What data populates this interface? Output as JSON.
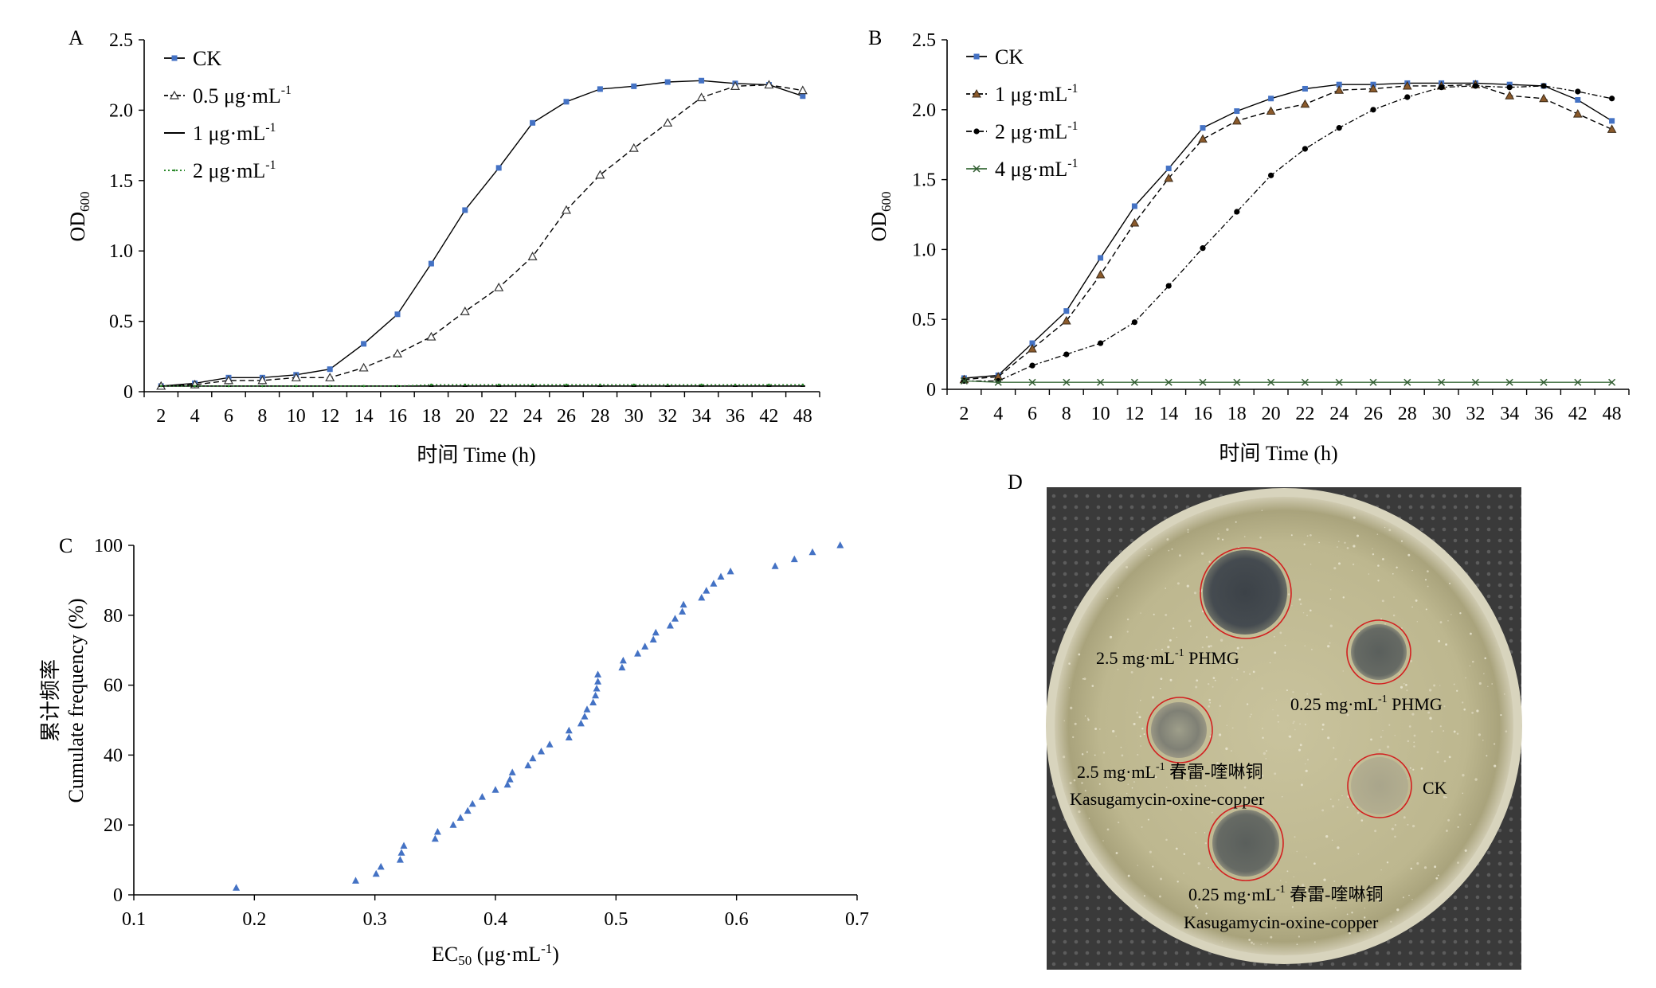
{
  "panel_letters": {
    "a": "A",
    "b": "B",
    "c": "C",
    "d": "D"
  },
  "colors": {
    "ck": "#4472C4",
    "marker_c": "#4472C4",
    "green": "#2E8B2E",
    "axis": "#000000",
    "circle": "#D22020"
  },
  "chart_data": [
    {
      "panel": "A",
      "type": "line",
      "categories": [
        "2",
        "4",
        "6",
        "8",
        "10",
        "12",
        "14",
        "16",
        "18",
        "20",
        "22",
        "24",
        "26",
        "28",
        "30",
        "32",
        "34",
        "36",
        "42",
        "48"
      ],
      "xlabel": "时间 Time (h)",
      "ylabel": "OD",
      "ylabel_sub": "600",
      "ylim": [
        0,
        2.5
      ],
      "yticks": [
        "0",
        "0.5",
        "1.0",
        "1.5",
        "2.0",
        "2.5"
      ],
      "legend_position": "top-left",
      "series": [
        {
          "name": "CK",
          "unit_sup": "",
          "style": "ck",
          "values": [
            0.04,
            0.06,
            0.1,
            0.1,
            0.12,
            0.16,
            0.34,
            0.55,
            0.91,
            1.29,
            1.59,
            1.91,
            2.06,
            2.15,
            2.17,
            2.2,
            2.21,
            2.19,
            2.18,
            2.1
          ]
        },
        {
          "name": "0.5 μg·mL",
          "unit_sup": "-1",
          "style": "dash-tri",
          "values": [
            0.04,
            0.05,
            0.08,
            0.08,
            0.1,
            0.1,
            0.17,
            0.27,
            0.39,
            0.57,
            0.74,
            0.96,
            1.29,
            1.54,
            1.73,
            1.91,
            2.09,
            2.17,
            2.18,
            2.14
          ]
        },
        {
          "name": "1 μg·mL",
          "unit_sup": "-1",
          "style": "solid-black",
          "values": [
            0.04,
            0.04,
            0.04,
            0.04,
            0.04,
            0.04,
            0.04,
            0.04,
            0.04,
            0.04,
            0.04,
            0.04,
            0.04,
            0.04,
            0.04,
            0.04,
            0.04,
            0.04,
            0.04,
            0.04
          ]
        },
        {
          "name": "2 μg·mL",
          "unit_sup": "-1",
          "style": "dot-green",
          "values": [
            0.04,
            0.04,
            0.04,
            0.04,
            0.04,
            0.04,
            0.04,
            0.04,
            0.05,
            0.05,
            0.05,
            0.05,
            0.05,
            0.05,
            0.05,
            0.05,
            0.05,
            0.05,
            0.05,
            0.05
          ]
        }
      ]
    },
    {
      "panel": "B",
      "type": "line",
      "categories": [
        "2",
        "4",
        "6",
        "8",
        "10",
        "12",
        "14",
        "16",
        "18",
        "20",
        "22",
        "24",
        "26",
        "28",
        "30",
        "32",
        "34",
        "36",
        "42",
        "48"
      ],
      "xlabel": "时间 Time (h)",
      "ylabel": "OD",
      "ylabel_sub": "600",
      "ylim": [
        0,
        2.5
      ],
      "yticks": [
        "0",
        "0.5",
        "1.0",
        "1.5",
        "2.0",
        "2.5"
      ],
      "legend_position": "top-left",
      "series": [
        {
          "name": "CK",
          "unit_sup": "",
          "style": "ck",
          "values": [
            0.08,
            0.1,
            0.33,
            0.56,
            0.94,
            1.31,
            1.58,
            1.87,
            1.99,
            2.08,
            2.15,
            2.18,
            2.18,
            2.19,
            2.19,
            2.19,
            2.18,
            2.17,
            2.07,
            1.92
          ]
        },
        {
          "name": "1 μg·mL",
          "unit_sup": "-1",
          "style": "dash-tri-brown",
          "values": [
            0.07,
            0.09,
            0.29,
            0.49,
            0.82,
            1.19,
            1.51,
            1.79,
            1.92,
            1.99,
            2.04,
            2.14,
            2.15,
            2.17,
            2.17,
            2.18,
            2.1,
            2.08,
            1.97,
            1.86
          ]
        },
        {
          "name": "2 μg·mL",
          "unit_sup": "-1",
          "style": "dashdot-dot",
          "values": [
            0.06,
            0.06,
            0.17,
            0.25,
            0.33,
            0.48,
            0.74,
            1.01,
            1.27,
            1.53,
            1.72,
            1.87,
            2.0,
            2.09,
            2.16,
            2.17,
            2.16,
            2.17,
            2.13,
            2.08
          ]
        },
        {
          "name": "4 μg·mL",
          "unit_sup": "-1",
          "style": "x-green",
          "values": [
            0.06,
            0.05,
            0.05,
            0.05,
            0.05,
            0.05,
            0.05,
            0.05,
            0.05,
            0.05,
            0.05,
            0.05,
            0.05,
            0.05,
            0.05,
            0.05,
            0.05,
            0.05,
            0.05,
            0.05
          ]
        }
      ]
    },
    {
      "panel": "C",
      "type": "scatter",
      "xlabel": "EC",
      "xlabel_sub": "50",
      "xlabel_rest": " (μg·mL",
      "xlabel_sup": "-1",
      "xlabel_end": ")",
      "ylabel_cn": "累计频率",
      "ylabel": "Cumulate frequency (%)",
      "xlim": [
        0.1,
        0.7
      ],
      "ylim": [
        0,
        100
      ],
      "xticks": [
        "0.1",
        "0.2",
        "0.3",
        "0.4",
        "0.5",
        "0.6",
        "0.7"
      ],
      "yticks": [
        "0",
        "20",
        "40",
        "60",
        "80",
        "100"
      ],
      "points": [
        [
          0.185,
          2
        ],
        [
          0.284,
          4
        ],
        [
          0.301,
          6
        ],
        [
          0.305,
          8
        ],
        [
          0.321,
          10
        ],
        [
          0.322,
          12
        ],
        [
          0.324,
          14
        ],
        [
          0.35,
          16
        ],
        [
          0.352,
          18
        ],
        [
          0.365,
          20
        ],
        [
          0.371,
          22
        ],
        [
          0.377,
          24
        ],
        [
          0.381,
          26
        ],
        [
          0.389,
          28
        ],
        [
          0.4,
          30
        ],
        [
          0.41,
          31.5
        ],
        [
          0.412,
          33
        ],
        [
          0.414,
          35
        ],
        [
          0.427,
          37
        ],
        [
          0.431,
          39
        ],
        [
          0.438,
          41
        ],
        [
          0.445,
          43
        ],
        [
          0.461,
          45
        ],
        [
          0.461,
          47
        ],
        [
          0.471,
          49
        ],
        [
          0.474,
          51
        ],
        [
          0.476,
          53
        ],
        [
          0.481,
          55
        ],
        [
          0.483,
          57
        ],
        [
          0.484,
          59
        ],
        [
          0.485,
          61
        ],
        [
          0.485,
          63
        ],
        [
          0.505,
          65
        ],
        [
          0.506,
          67
        ],
        [
          0.518,
          69
        ],
        [
          0.524,
          71
        ],
        [
          0.531,
          73
        ],
        [
          0.533,
          75
        ],
        [
          0.545,
          77
        ],
        [
          0.549,
          79
        ],
        [
          0.555,
          81
        ],
        [
          0.556,
          83
        ],
        [
          0.571,
          85
        ],
        [
          0.575,
          87
        ],
        [
          0.581,
          89
        ],
        [
          0.587,
          91
        ],
        [
          0.595,
          92.5
        ],
        [
          0.632,
          94
        ],
        [
          0.648,
          96
        ],
        [
          0.663,
          98
        ],
        [
          0.686,
          100
        ]
      ]
    }
  ],
  "panel_d": {
    "labels": {
      "phmg_high": "2.5 mg·mL",
      "phmg_high_sup": "-1",
      "phmg_high_tail": " PHMG",
      "phmg_low": "0.25 mg·mL",
      "phmg_low_sup": "-1",
      "phmg_low_tail": " PHMG",
      "kasu_high": "2.5 mg·mL",
      "kasu_high_sup": "-1",
      "kasu_high_tail": " 春雷-喹啉铜",
      "kasu_high_en": "Kasugamycin-oxine-copper",
      "ck": "CK",
      "kasu_low": "0.25 mg·mL",
      "kasu_low_sup": "-1",
      "kasu_low_tail": " 春雷-喹啉铜",
      "kasu_low_en": "Kasugamycin-oxine-copper"
    }
  }
}
